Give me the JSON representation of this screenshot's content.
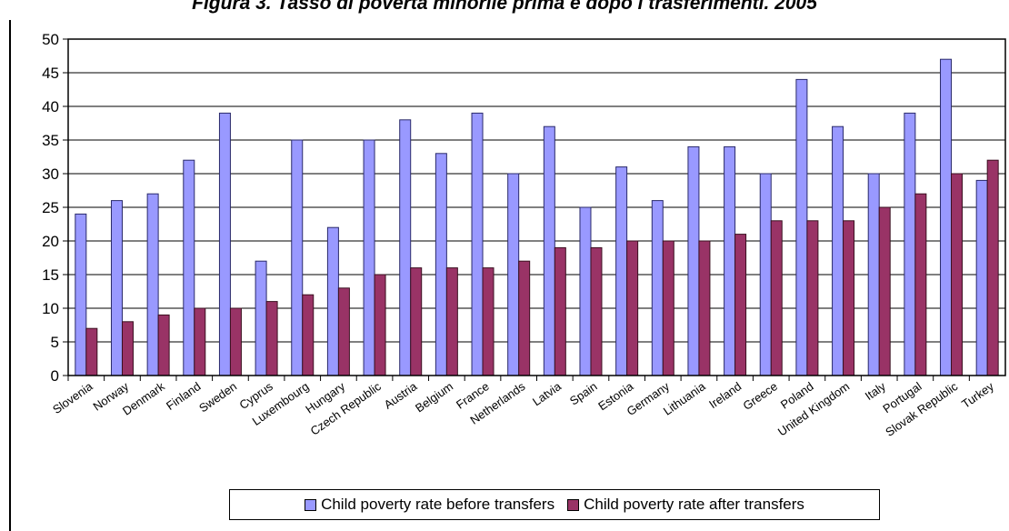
{
  "colors": {
    "before_fill": "#9999ff",
    "before_stroke": "#2a2a6a",
    "after_fill": "#993366",
    "after_stroke": "#3a1020",
    "grid": "#000000"
  },
  "chart_data": {
    "type": "bar",
    "title": "Figura 3. Tasso di povertà minorile prima e dopo i trasferimenti. 2005",
    "xlabel": "",
    "ylabel": "",
    "ylim": [
      0,
      50
    ],
    "yticks": [
      0,
      5,
      10,
      15,
      20,
      25,
      30,
      35,
      40,
      45,
      50
    ],
    "grid": true,
    "legend_position": "bottom",
    "categories": [
      "Slovenia",
      "Norway",
      "Denmark",
      "Finland",
      "Sweden",
      "Cyprus",
      "Luxembourg",
      "Hungary",
      "Czech Republic",
      "Austria",
      "Belgium",
      "France",
      "Netherlands",
      "Latvia",
      "Spain",
      "Estonia",
      "Germany",
      "Lithuania",
      "Ireland",
      "Greece",
      "Poland",
      "United Kingdom",
      "Italy",
      "Portugal",
      "Slovak Republic",
      "Turkey"
    ],
    "series": [
      {
        "name": "Child poverty rate before transfers",
        "values": [
          24,
          26,
          27,
          32,
          39,
          17,
          35,
          22,
          35,
          38,
          33,
          39,
          30,
          37,
          25,
          31,
          26,
          34,
          34,
          30,
          44,
          37,
          30,
          39,
          47,
          29
        ]
      },
      {
        "name": "Child poverty rate after transfers",
        "values": [
          7,
          8,
          9,
          10,
          10,
          11,
          12,
          13,
          15,
          16,
          16,
          16,
          17,
          19,
          19,
          20,
          20,
          20,
          21,
          23,
          23,
          23,
          25,
          27,
          30,
          32
        ]
      }
    ]
  }
}
